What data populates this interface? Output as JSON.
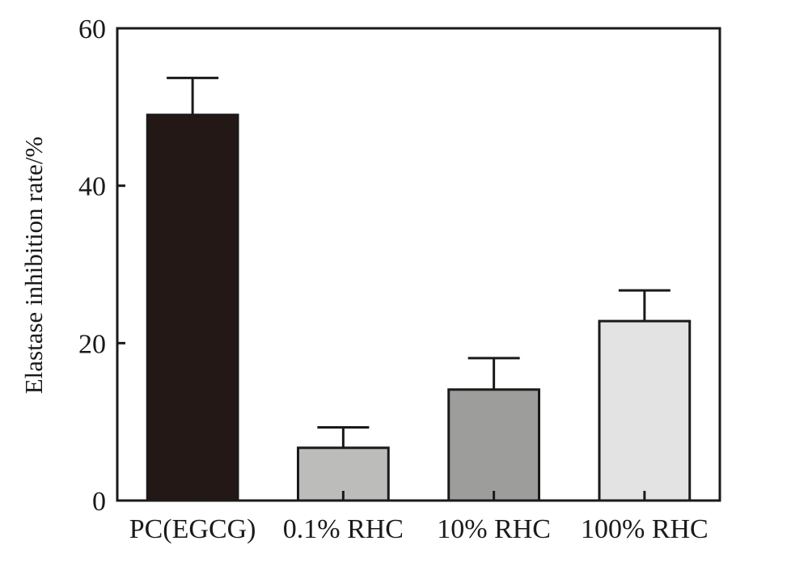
{
  "chart_data": {
    "type": "bar",
    "title": "",
    "xlabel": "",
    "ylabel": "Elastase inhibition rate/%",
    "ylim": [
      0,
      60
    ],
    "yticks": [
      0,
      20,
      40,
      60
    ],
    "grid": false,
    "categories": [
      "PC(EGCG)",
      "0.1% RHC",
      "10% RHC",
      "100% RHC"
    ],
    "values": [
      49,
      6.7,
      14.1,
      22.8
    ],
    "errors": [
      4.7,
      2.6,
      4.0,
      3.9
    ],
    "bar_colors": [
      "#231815",
      "#bcbdbb",
      "#9d9e9c",
      "#e3e3e3"
    ]
  }
}
